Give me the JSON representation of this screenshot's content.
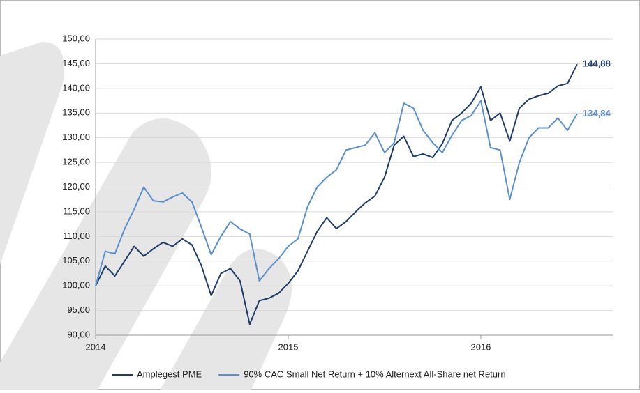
{
  "chart_data": {
    "type": "line",
    "x": [
      2014.0,
      2014.05,
      2014.1,
      2014.15,
      2014.2,
      2014.25,
      2014.3,
      2014.35,
      2014.4,
      2014.45,
      2014.5,
      2014.55,
      2014.6,
      2014.65,
      2014.7,
      2014.75,
      2014.8,
      2014.85,
      2014.9,
      2014.95,
      2015.0,
      2015.05,
      2015.1,
      2015.15,
      2015.2,
      2015.25,
      2015.3,
      2015.35,
      2015.4,
      2015.45,
      2015.5,
      2015.55,
      2015.6,
      2015.65,
      2015.7,
      2015.75,
      2015.8,
      2015.85,
      2015.9,
      2015.95,
      2016.0,
      2016.05,
      2016.1,
      2016.15,
      2016.2,
      2016.25,
      2016.3,
      2016.35,
      2016.4,
      2016.45,
      2016.5
    ],
    "series": [
      {
        "name": "Amplegest PME",
        "color": "#1f3d6b",
        "values": [
          100,
          104,
          102,
          105,
          108,
          106,
          107.5,
          108.8,
          108,
          109.5,
          108.3,
          104,
          98,
          102.5,
          103.5,
          101,
          92.2,
          97,
          97.5,
          98.5,
          100.5,
          103,
          107,
          111,
          113.8,
          111.6,
          113,
          115,
          116.8,
          118.2,
          122,
          128.5,
          130.3,
          126.2,
          126.7,
          126,
          128.8,
          133.5,
          135,
          137,
          140.3,
          133.5,
          135,
          129.3,
          136,
          137.8,
          138.5,
          139,
          140.5,
          141,
          144.88
        ],
        "value_labels": [
          null,
          null,
          null,
          null,
          null,
          null,
          null,
          null,
          null,
          null,
          null,
          null,
          null,
          null,
          null,
          null,
          null,
          null,
          null,
          null,
          null,
          null,
          null,
          null,
          null,
          null,
          null,
          null,
          null,
          null,
          null,
          null,
          null,
          null,
          null,
          null,
          null,
          null,
          null,
          null,
          null,
          null,
          null,
          null,
          null,
          null,
          null,
          null,
          null,
          null,
          "144,88"
        ]
      },
      {
        "name": "90% CAC Small Net Return + 10% Alternext All-Share net Return",
        "color": "#5b8fd0",
        "values": [
          100,
          107,
          106.5,
          111.5,
          115.5,
          120,
          117.2,
          117,
          118,
          118.8,
          117,
          111.8,
          106.3,
          110,
          113,
          111.5,
          110.5,
          101,
          103.5,
          105.5,
          108,
          109.5,
          116,
          120,
          122,
          123.5,
          127.5,
          128,
          128.5,
          131,
          127,
          129,
          137,
          136,
          131.5,
          129,
          127,
          130.5,
          133.5,
          134.5,
          137.5,
          128,
          127.5,
          117.5,
          125,
          130,
          132,
          132,
          134,
          131.5,
          134.84
        ],
        "value_labels": [
          null,
          null,
          null,
          null,
          null,
          null,
          null,
          null,
          null,
          null,
          null,
          null,
          null,
          null,
          null,
          null,
          null,
          null,
          null,
          null,
          null,
          null,
          null,
          null,
          null,
          null,
          null,
          null,
          null,
          null,
          null,
          null,
          null,
          null,
          null,
          null,
          null,
          null,
          null,
          null,
          null,
          null,
          null,
          null,
          null,
          null,
          null,
          null,
          null,
          null,
          "134,84"
        ]
      }
    ],
    "xlim": [
      2014,
      2016.685
    ],
    "xticks": [
      2014,
      2015,
      2016
    ],
    "ylim": [
      90,
      150
    ],
    "yticks": [
      {
        "value": 90,
        "label": "90,00"
      },
      {
        "value": 95,
        "label": "95,00"
      },
      {
        "value": 100,
        "label": "100,00"
      },
      {
        "value": 105,
        "label": "105,00"
      },
      {
        "value": 110,
        "label": "110,00"
      },
      {
        "value": 115,
        "label": "115,00"
      },
      {
        "value": 120,
        "label": "120,00"
      },
      {
        "value": 125,
        "label": "125,00"
      },
      {
        "value": 130,
        "label": "130,00"
      },
      {
        "value": 135,
        "label": "135,00"
      },
      {
        "value": 140,
        "label": "140,00"
      },
      {
        "value": 145,
        "label": "145,00"
      },
      {
        "value": 150,
        "label": "150,00"
      }
    ],
    "grid": true,
    "legend": "bottom"
  }
}
